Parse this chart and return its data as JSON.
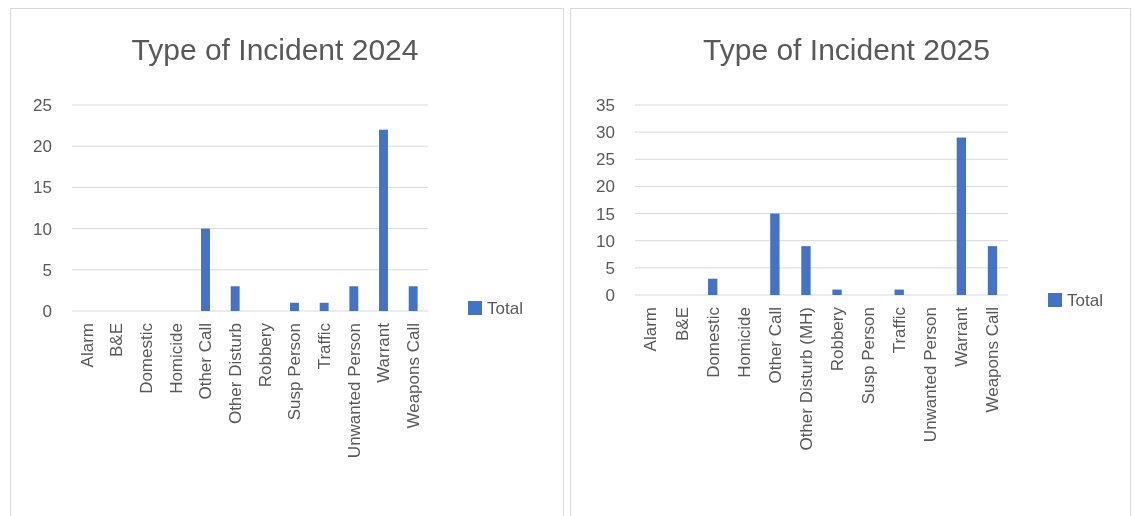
{
  "chart_data": [
    {
      "type": "bar",
      "title": "Type of Incident 2024",
      "categories": [
        "Alarm",
        "B&E",
        "Domestic",
        "Homicide",
        "Other Call",
        "Other Disturb",
        "Robbery",
        "Susp Person",
        "Traffic",
        "Unwanted Person",
        "Warrant",
        "Weapons Call"
      ],
      "series": [
        {
          "name": "Total",
          "color": "#4472c4",
          "values": [
            0,
            0,
            0,
            0,
            10,
            3,
            0,
            1,
            1,
            3,
            22,
            3
          ]
        }
      ],
      "ylim": [
        0,
        25
      ],
      "yticks": [
        0,
        5,
        10,
        15,
        20,
        25
      ],
      "grid": "y",
      "legend": "right"
    },
    {
      "type": "bar",
      "title": "Type of Incident 2025",
      "categories": [
        "Alarm",
        "B&E",
        "Domestic",
        "Homicide",
        "Other Call",
        "Other Disturb (MH)",
        "Robbery",
        "Susp Person",
        "Traffic",
        "Unwanted Person",
        "Warrant",
        "Weapons Call"
      ],
      "series": [
        {
          "name": "Total",
          "color": "#4472c4",
          "values": [
            0,
            0,
            3,
            0,
            15,
            9,
            1,
            0,
            1,
            0,
            29,
            9
          ]
        }
      ],
      "ylim": [
        0,
        35
      ],
      "yticks": [
        0,
        5,
        10,
        15,
        20,
        25,
        30,
        35
      ],
      "grid": "y",
      "legend": "right"
    }
  ]
}
